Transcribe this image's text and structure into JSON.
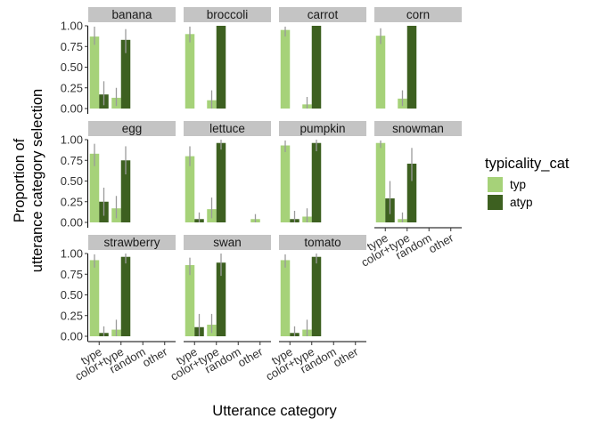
{
  "chart_data": {
    "type": "bar",
    "facet_panels": [
      "banana",
      "broccoli",
      "carrot",
      "corn",
      "egg",
      "lettuce",
      "pumpkin",
      "snowman",
      "strawberry",
      "swan",
      "tomato"
    ],
    "categories": [
      "type",
      "color+type",
      "random",
      "other"
    ],
    "xlabel": "Utterance category",
    "ylabel": "Proportion of utterance category selection",
    "ylim": [
      0,
      1.05
    ],
    "yticks": [
      "0.00",
      "0.25",
      "0.50",
      "0.75",
      "1.00"
    ],
    "legend": {
      "title": "typicality_cat",
      "placement": "right",
      "entries": [
        {
          "name": "typ",
          "color": "#a6d279"
        },
        {
          "name": "atyp",
          "color": "#3d6020"
        }
      ]
    },
    "grid": false,
    "series": [
      {
        "name": "typ",
        "color": "#a6d279",
        "values": {
          "banana": [
            0.87,
            0.13,
            0,
            0
          ],
          "broccoli": [
            0.9,
            0.1,
            0,
            0
          ],
          "carrot": [
            0.95,
            0.05,
            0,
            0
          ],
          "corn": [
            0.88,
            0.12,
            0,
            0
          ],
          "egg": [
            0.83,
            0.17,
            0,
            0
          ],
          "lettuce": [
            0.8,
            0.16,
            0,
            0.04
          ],
          "pumpkin": [
            0.93,
            0.07,
            0,
            0
          ],
          "snowman": [
            0.96,
            0.04,
            0,
            0
          ],
          "strawberry": [
            0.92,
            0.08,
            0,
            0
          ],
          "swan": [
            0.86,
            0.14,
            0,
            0
          ],
          "tomato": [
            0.92,
            0.08,
            0,
            0
          ]
        },
        "error": {
          "banana": [
            [
              0.77,
              0.99
            ],
            [
              0.03,
              0.25
            ],
            null,
            null
          ],
          "broccoli": [
            [
              0.8,
              0.99
            ],
            [
              0.0,
              0.22
            ],
            null,
            null
          ],
          "carrot": [
            [
              0.87,
              0.99
            ],
            [
              0.0,
              0.14
            ],
            null,
            null
          ],
          "corn": [
            [
              0.78,
              0.97
            ],
            [
              0.03,
              0.22
            ],
            null,
            null
          ],
          "egg": [
            [
              0.68,
              0.95
            ],
            [
              0.05,
              0.32
            ],
            null,
            null
          ],
          "lettuce": [
            [
              0.68,
              0.92
            ],
            [
              0.05,
              0.3
            ],
            null,
            [
              0.0,
              0.1
            ]
          ],
          "pumpkin": [
            [
              0.85,
              0.99
            ],
            [
              0.0,
              0.17
            ],
            null,
            null
          ],
          "snowman": [
            [
              0.9,
              0.99
            ],
            [
              0.0,
              0.12
            ],
            null,
            null
          ],
          "strawberry": [
            [
              0.83,
              0.99
            ],
            [
              0.0,
              0.2
            ],
            null,
            null
          ],
          "swan": [
            [
              0.74,
              0.95
            ],
            [
              0.04,
              0.27
            ],
            null,
            null
          ],
          "tomato": [
            [
              0.83,
              0.99
            ],
            [
              0.0,
              0.2
            ],
            null,
            null
          ]
        }
      },
      {
        "name": "atyp",
        "color": "#3d6020",
        "values": {
          "banana": [
            0.17,
            0.83,
            0,
            0
          ],
          "broccoli": [
            0,
            1.0,
            0,
            0
          ],
          "carrot": [
            0,
            1.0,
            0,
            0
          ],
          "corn": [
            0,
            1.0,
            0,
            0
          ],
          "egg": [
            0.25,
            0.75,
            0,
            0
          ],
          "lettuce": [
            0.04,
            0.96,
            0,
            0
          ],
          "pumpkin": [
            0.04,
            0.96,
            0,
            0
          ],
          "snowman": [
            0.29,
            0.71,
            0,
            0
          ],
          "strawberry": [
            0.04,
            0.96,
            0,
            0
          ],
          "swan": [
            0.11,
            0.89,
            0,
            0
          ],
          "tomato": [
            0.04,
            0.96,
            0,
            0
          ]
        },
        "error": {
          "banana": [
            [
              0.04,
              0.33
            ],
            [
              0.67,
              0.96
            ],
            null,
            null
          ],
          "broccoli": [
            null,
            null,
            null,
            null
          ],
          "carrot": [
            null,
            null,
            null,
            null
          ],
          "corn": [
            null,
            null,
            null,
            null
          ],
          "egg": [
            [
              0.08,
              0.42
            ],
            [
              0.58,
              0.92
            ],
            null,
            null
          ],
          "lettuce": [
            [
              0.0,
              0.12
            ],
            [
              0.88,
              1.0
            ],
            null,
            null
          ],
          "pumpkin": [
            [
              0.0,
              0.14
            ],
            [
              0.86,
              1.0
            ],
            null,
            null
          ],
          "snowman": [
            [
              0.1,
              0.5
            ],
            [
              0.5,
              0.9
            ],
            null,
            null
          ],
          "strawberry": [
            [
              0.0,
              0.12
            ],
            [
              0.88,
              1.0
            ],
            null,
            null
          ],
          "swan": [
            [
              0.0,
              0.27
            ],
            [
              0.73,
              1.0
            ],
            null,
            null
          ],
          "tomato": [
            [
              0.0,
              0.12
            ],
            [
              0.88,
              1.0
            ],
            null,
            null
          ]
        }
      }
    ]
  }
}
